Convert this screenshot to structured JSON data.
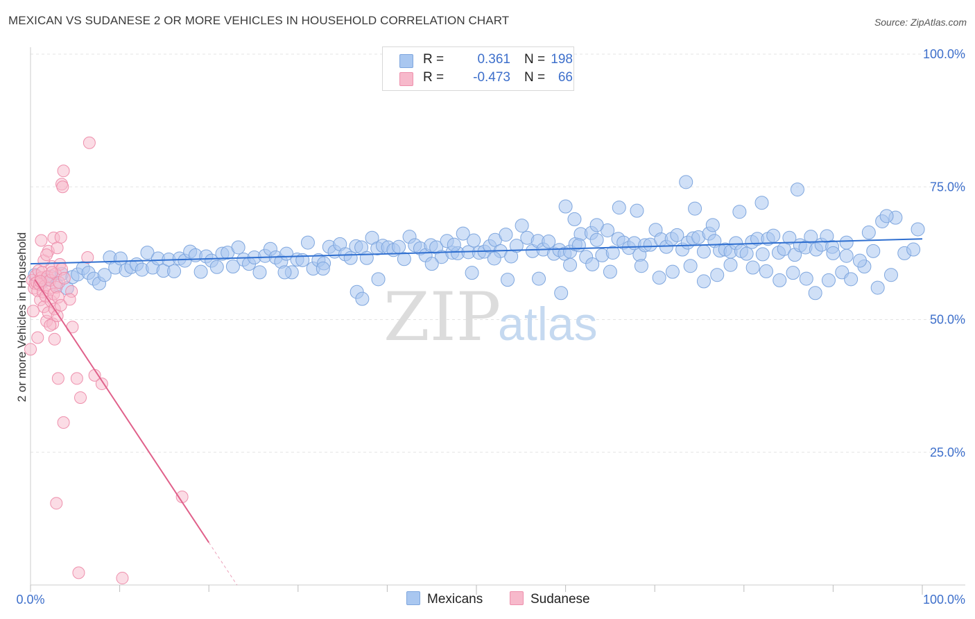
{
  "header": {
    "title": "MEXICAN VS SUDANESE 2 OR MORE VEHICLES IN HOUSEHOLD CORRELATION CHART",
    "source": "Source: ZipAtlas.com"
  },
  "stats": {
    "mexicans": {
      "r_label": "R =",
      "r_value": "0.361",
      "n_label": "N =",
      "n_value": "198"
    },
    "sudanese": {
      "r_label": "R =",
      "r_value": "-0.473",
      "n_label": "N =",
      "n_value": "66"
    }
  },
  "legend": {
    "mexicans": "Mexicans",
    "sudanese": "Sudanese"
  },
  "watermark": {
    "zip": "ZIP",
    "atlas": "atlas"
  },
  "colors": {
    "blue_fill": "#a9c7f0",
    "blue_stroke": "#7ea6de",
    "blue_line": "#2f6fd0",
    "pink_fill": "#f7b9cb",
    "pink_stroke": "#ee8fac",
    "pink_line": "#e0608a",
    "axis_label_blue": "#3d6fcb",
    "grid": "#e3e3e3"
  },
  "chart_data": {
    "type": "scatter",
    "title": "MEXICAN VS SUDANESE 2 OR MORE VEHICLES IN HOUSEHOLD CORRELATION CHART",
    "xlabel": "",
    "ylabel": "2 or more Vehicles in Household",
    "xlim": [
      0,
      100
    ],
    "ylim": [
      0,
      100
    ],
    "x_tick_labels": [
      "0.0%",
      "100.0%"
    ],
    "y_tick_labels": [
      "25.0%",
      "50.0%",
      "75.0%",
      "100.0%"
    ],
    "y_ticks": [
      25,
      50,
      75,
      100
    ],
    "grid": true,
    "legend_position": "bottom-center",
    "series": [
      {
        "name": "Mexicans",
        "r": 0.361,
        "n": 198,
        "trend": {
          "x": [
            0,
            100
          ],
          "y": [
            60.5,
            65.2
          ]
        },
        "points": [
          [
            0.5,
            58.4
          ],
          [
            1.1,
            56.8
          ],
          [
            1.7,
            57.5
          ],
          [
            2.3,
            58.1
          ],
          [
            2.9,
            56.6
          ],
          [
            3.5,
            58.6
          ],
          [
            4.1,
            55.9
          ],
          [
            4.7,
            58.0
          ],
          [
            5.3,
            58.5
          ],
          [
            5.9,
            59.7
          ],
          [
            6.5,
            58.8
          ],
          [
            7.1,
            57.7
          ],
          [
            7.7,
            56.8
          ],
          [
            8.3,
            58.4
          ],
          [
            8.9,
            61.7
          ],
          [
            9.5,
            59.8
          ],
          [
            10.1,
            61.5
          ],
          [
            10.7,
            59.3
          ],
          [
            11.3,
            59.9
          ],
          [
            11.9,
            60.4
          ],
          [
            12.5,
            59.4
          ],
          [
            13.1,
            62.6
          ],
          [
            13.7,
            59.8
          ],
          [
            14.3,
            61.5
          ],
          [
            14.9,
            59.2
          ],
          [
            15.5,
            61.3
          ],
          [
            16.1,
            59.1
          ],
          [
            16.7,
            61.5
          ],
          [
            17.3,
            61.1
          ],
          [
            17.9,
            62.8
          ],
          [
            18.5,
            62.1
          ],
          [
            19.1,
            59.0
          ],
          [
            19.7,
            61.9
          ],
          [
            20.3,
            61.1
          ],
          [
            20.9,
            59.9
          ],
          [
            21.5,
            62.4
          ],
          [
            22.1,
            62.6
          ],
          [
            22.7,
            60.0
          ],
          [
            23.3,
            63.6
          ],
          [
            23.9,
            61.3
          ],
          [
            24.5,
            60.5
          ],
          [
            25.1,
            61.7
          ],
          [
            25.7,
            58.9
          ],
          [
            26.3,
            62.0
          ],
          [
            26.9,
            63.3
          ],
          [
            27.5,
            61.7
          ],
          [
            28.1,
            60.9
          ],
          [
            28.7,
            62.4
          ],
          [
            29.3,
            58.9
          ],
          [
            29.9,
            61.3
          ],
          [
            30.5,
            61.2
          ],
          [
            31.1,
            64.5
          ],
          [
            31.7,
            59.6
          ],
          [
            32.3,
            61.2
          ],
          [
            32.9,
            60.6
          ],
          [
            33.5,
            63.7
          ],
          [
            34.1,
            62.8
          ],
          [
            34.7,
            64.2
          ],
          [
            35.3,
            62.3
          ],
          [
            35.9,
            61.6
          ],
          [
            36.5,
            63.8
          ],
          [
            37.1,
            63.6
          ],
          [
            37.7,
            61.6
          ],
          [
            38.3,
            65.4
          ],
          [
            38.9,
            63.4
          ],
          [
            39.5,
            63.9
          ],
          [
            40.1,
            63.6
          ],
          [
            40.7,
            63.1
          ],
          [
            41.3,
            63.7
          ],
          [
            41.9,
            61.4
          ],
          [
            42.5,
            65.6
          ],
          [
            43.1,
            64.0
          ],
          [
            43.7,
            63.4
          ],
          [
            44.3,
            62.1
          ],
          [
            44.9,
            64.0
          ],
          [
            45.5,
            63.6
          ],
          [
            46.1,
            61.8
          ],
          [
            46.7,
            64.8
          ],
          [
            47.3,
            62.6
          ],
          [
            47.9,
            62.5
          ],
          [
            48.5,
            66.2
          ],
          [
            49.1,
            62.7
          ],
          [
            49.7,
            64.9
          ],
          [
            50.3,
            62.6
          ],
          [
            50.9,
            62.8
          ],
          [
            51.5,
            63.8
          ],
          [
            52.1,
            65.0
          ],
          [
            52.7,
            62.9
          ],
          [
            53.3,
            66.0
          ],
          [
            53.9,
            61.9
          ],
          [
            54.5,
            63.9
          ],
          [
            55.1,
            67.7
          ],
          [
            55.7,
            65.4
          ],
          [
            56.3,
            62.9
          ],
          [
            56.9,
            64.8
          ],
          [
            57.5,
            63.2
          ],
          [
            58.1,
            64.7
          ],
          [
            58.7,
            62.4
          ],
          [
            59.3,
            63.1
          ],
          [
            59.9,
            62.4
          ],
          [
            60.5,
            62.8
          ],
          [
            61.1,
            64.2
          ],
          [
            61.7,
            66.1
          ],
          [
            62.3,
            61.8
          ],
          [
            62.9,
            66.3
          ],
          [
            63.5,
            65.0
          ],
          [
            64.1,
            62.1
          ],
          [
            64.7,
            66.8
          ],
          [
            65.3,
            62.6
          ],
          [
            65.9,
            65.2
          ],
          [
            66.5,
            64.5
          ],
          [
            67.1,
            63.5
          ],
          [
            67.7,
            64.4
          ],
          [
            68.3,
            62.2
          ],
          [
            68.9,
            64.0
          ],
          [
            69.5,
            64.1
          ],
          [
            70.1,
            66.9
          ],
          [
            70.7,
            65.1
          ],
          [
            71.3,
            63.7
          ],
          [
            71.9,
            65.2
          ],
          [
            72.5,
            65.9
          ],
          [
            73.1,
            63.2
          ],
          [
            73.7,
            64.5
          ],
          [
            74.3,
            65.3
          ],
          [
            74.9,
            65.5
          ],
          [
            75.5,
            62.8
          ],
          [
            76.1,
            66.2
          ],
          [
            76.7,
            64.8
          ],
          [
            77.3,
            63.0
          ],
          [
            77.9,
            63.2
          ],
          [
            78.5,
            62.8
          ],
          [
            79.1,
            64.4
          ],
          [
            79.7,
            62.9
          ],
          [
            80.3,
            62.4
          ],
          [
            80.9,
            64.6
          ],
          [
            81.5,
            65.2
          ],
          [
            82.1,
            62.3
          ],
          [
            82.7,
            65.2
          ],
          [
            83.3,
            65.8
          ],
          [
            83.9,
            62.6
          ],
          [
            84.5,
            63.3
          ],
          [
            85.1,
            65.4
          ],
          [
            85.7,
            62.2
          ],
          [
            86.3,
            64.0
          ],
          [
            86.9,
            63.6
          ],
          [
            87.5,
            65.6
          ],
          [
            88.1,
            63.2
          ],
          [
            88.7,
            64.1
          ],
          [
            89.3,
            65.7
          ],
          [
            89.9,
            63.7
          ],
          [
            28.5,
            58.9
          ],
          [
            32.8,
            59.6
          ],
          [
            36.6,
            55.2
          ],
          [
            37.2,
            53.9
          ],
          [
            39.0,
            57.6
          ],
          [
            45.0,
            60.5
          ],
          [
            47.5,
            64.1
          ],
          [
            49.5,
            58.8
          ],
          [
            52.0,
            61.5
          ],
          [
            53.5,
            57.5
          ],
          [
            57.0,
            57.7
          ],
          [
            59.5,
            55.0
          ],
          [
            60.5,
            60.3
          ],
          [
            61.5,
            64.0
          ],
          [
            63.0,
            60.4
          ],
          [
            65.0,
            59.0
          ],
          [
            68.5,
            60.1
          ],
          [
            70.5,
            57.9
          ],
          [
            72.0,
            59.0
          ],
          [
            74.0,
            60.1
          ],
          [
            75.5,
            57.2
          ],
          [
            77.0,
            58.4
          ],
          [
            78.5,
            60.3
          ],
          [
            81.0,
            59.8
          ],
          [
            82.5,
            59.1
          ],
          [
            84.0,
            57.4
          ],
          [
            85.5,
            58.8
          ],
          [
            87.0,
            57.7
          ],
          [
            88.0,
            55.0
          ],
          [
            89.5,
            57.4
          ],
          [
            91.0,
            58.9
          ],
          [
            92.0,
            57.6
          ],
          [
            93.5,
            60.0
          ],
          [
            95.0,
            56.0
          ],
          [
            96.5,
            58.4
          ],
          [
            98.0,
            62.5
          ],
          [
            99.0,
            63.2
          ],
          [
            91.5,
            62.0
          ],
          [
            93.0,
            61.1
          ],
          [
            94.5,
            62.9
          ],
          [
            73.5,
            75.9
          ],
          [
            86.0,
            74.5
          ],
          [
            79.5,
            70.3
          ],
          [
            82.0,
            72.0
          ],
          [
            74.5,
            70.9
          ],
          [
            76.5,
            67.8
          ],
          [
            60.0,
            71.3
          ],
          [
            61.0,
            68.9
          ],
          [
            95.5,
            68.5
          ],
          [
            97.0,
            69.2
          ],
          [
            94.0,
            66.4
          ],
          [
            91.5,
            64.5
          ],
          [
            90.0,
            62.5
          ],
          [
            66.0,
            71.1
          ],
          [
            68.0,
            70.5
          ],
          [
            63.5,
            67.8
          ],
          [
            99.5,
            67.0
          ],
          [
            96.0,
            69.5
          ]
        ]
      },
      {
        "name": "Sudanese",
        "r": -0.473,
        "n": 66,
        "trend": {
          "x": [
            0.5,
            20.0
          ],
          "y": [
            57.5,
            8.0
          ]
        },
        "points": [
          [
            0.2,
            57.4
          ],
          [
            0.4,
            55.9
          ],
          [
            0.5,
            56.8
          ],
          [
            0.6,
            58.3
          ],
          [
            0.7,
            57.0
          ],
          [
            0.8,
            55.4
          ],
          [
            0.9,
            59.2
          ],
          [
            1.0,
            56.6
          ],
          [
            1.1,
            53.7
          ],
          [
            1.2,
            57.9
          ],
          [
            1.3,
            58.9
          ],
          [
            1.4,
            55.2
          ],
          [
            1.5,
            52.4
          ],
          [
            1.6,
            56.3
          ],
          [
            1.7,
            54.4
          ],
          [
            1.8,
            49.7
          ],
          [
            1.9,
            58.1
          ],
          [
            2.0,
            51.3
          ],
          [
            2.1,
            55.9
          ],
          [
            2.2,
            57.4
          ],
          [
            2.3,
            53.5
          ],
          [
            2.4,
            60.0
          ],
          [
            2.5,
            49.2
          ],
          [
            2.6,
            54.8
          ],
          [
            2.7,
            52.0
          ],
          [
            2.8,
            58.6
          ],
          [
            2.9,
            56.1
          ],
          [
            3.0,
            50.7
          ],
          [
            3.1,
            54.2
          ],
          [
            3.2,
            57.0
          ],
          [
            3.3,
            60.4
          ],
          [
            3.4,
            52.7
          ],
          [
            3.5,
            59.5
          ],
          [
            0.3,
            51.6
          ],
          [
            0.8,
            46.6
          ],
          [
            1.5,
            61.1
          ],
          [
            2.0,
            62.9
          ],
          [
            2.6,
            65.4
          ],
          [
            3.0,
            63.5
          ],
          [
            3.4,
            65.5
          ],
          [
            1.2,
            64.9
          ],
          [
            1.8,
            62.2
          ],
          [
            2.4,
            58.9
          ],
          [
            4.6,
            55.3
          ],
          [
            4.7,
            48.6
          ],
          [
            2.7,
            46.3
          ],
          [
            0.0,
            44.4
          ],
          [
            3.1,
            38.9
          ],
          [
            5.2,
            38.9
          ],
          [
            7.2,
            39.5
          ],
          [
            8.0,
            37.9
          ],
          [
            5.6,
            35.3
          ],
          [
            3.7,
            78.0
          ],
          [
            3.5,
            75.5
          ],
          [
            3.6,
            75.0
          ],
          [
            6.6,
            83.3
          ],
          [
            3.8,
            57.8
          ],
          [
            2.2,
            48.9
          ],
          [
            4.4,
            53.8
          ],
          [
            6.4,
            61.7
          ],
          [
            3.7,
            30.6
          ],
          [
            17.0,
            16.6
          ],
          [
            2.9,
            15.4
          ],
          [
            5.4,
            2.3
          ],
          [
            10.3,
            1.3
          ],
          [
            1.1,
            57.2
          ]
        ]
      }
    ]
  }
}
